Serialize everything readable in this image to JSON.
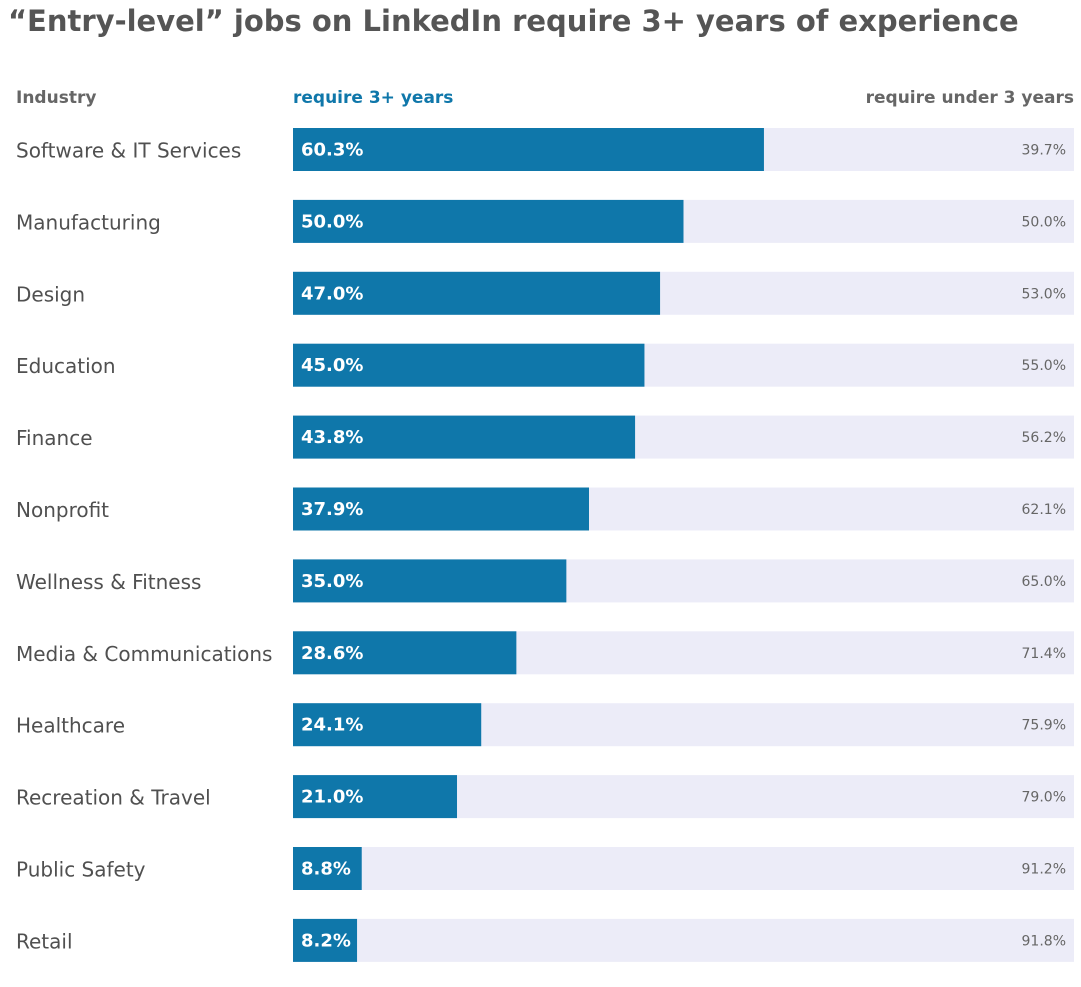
{
  "chart_data": {
    "type": "bar",
    "orientation": "horizontal",
    "stacked": true,
    "title": "“Entry-level” jobs on LinkedIn require 3+ years of experience",
    "category_header": "Industry",
    "categories": [
      "Software & IT Services",
      "Manufacturing",
      "Design",
      "Education",
      "Finance",
      "Nonprofit",
      "Wellness & Fitness",
      "Media & Communications",
      "Healthcare",
      "Recreation & Travel",
      "Public Safety",
      "Retail"
    ],
    "series": [
      {
        "name": "require 3+ years",
        "color": "#0f77aa",
        "values": [
          60.3,
          50.0,
          47.0,
          45.0,
          43.8,
          37.9,
          35.0,
          28.6,
          24.1,
          21.0,
          8.8,
          8.2
        ],
        "labels": [
          "60.3%",
          "50.0%",
          "47.0%",
          "45.0%",
          "43.8%",
          "37.9%",
          "35.0%",
          "28.6%",
          "24.1%",
          "21.0%",
          "8.8%",
          "8.2%"
        ]
      },
      {
        "name": "require under 3 years",
        "color": "#ececf8",
        "values": [
          39.7,
          50.0,
          53.0,
          55.0,
          56.2,
          62.1,
          65.0,
          71.4,
          75.9,
          79.0,
          91.2,
          91.8
        ],
        "labels": [
          "39.7%",
          "50.0%",
          "53.0%",
          "55.0%",
          "56.2%",
          "62.1%",
          "65.0%",
          "71.4%",
          "75.9%",
          "79.0%",
          "91.2%",
          "91.8%"
        ]
      }
    ],
    "xlim": [
      0,
      100
    ],
    "unit": "%",
    "grid": false,
    "legend": "top"
  },
  "colors": {
    "title": "#555555",
    "header": "#666666",
    "category_text": "#505050",
    "inner_label": "#ffffff",
    "remainder_label": "#666666"
  }
}
